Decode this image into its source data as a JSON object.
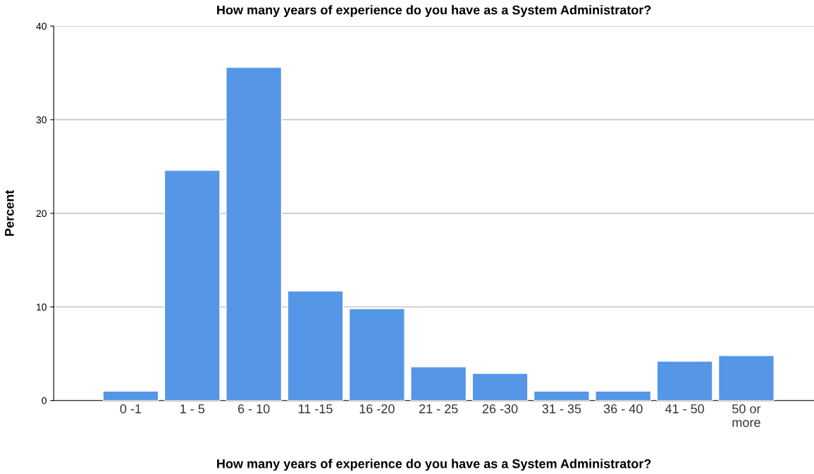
{
  "chart_data": {
    "type": "bar",
    "title": "How many years of experience do you have as a System Administrator?",
    "xlabel": "How many years of experience do you have as a System Administrator?",
    "ylabel": "Percent",
    "categories": [
      "0 -1",
      "1 - 5",
      "6 - 10",
      "11 -15",
      "16 -20",
      "21 - 25",
      "26 -30",
      "31 - 35",
      "36 - 40",
      "41 - 50",
      "50 or\nmore"
    ],
    "values": [
      1.0,
      24.6,
      35.6,
      11.7,
      9.8,
      3.6,
      2.9,
      1.0,
      1.0,
      4.2,
      4.8
    ],
    "color": "#5596e6",
    "ylim": [
      0,
      40
    ],
    "yticks": [
      0,
      10,
      20,
      30,
      40
    ],
    "grid": "y"
  }
}
